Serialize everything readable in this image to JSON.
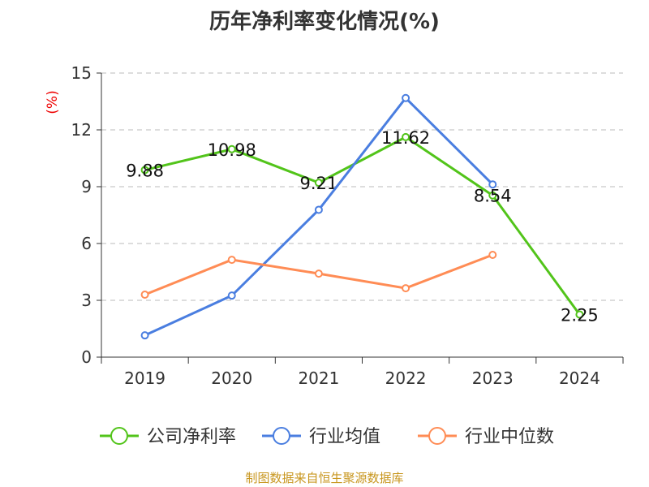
{
  "chart_data": {
    "type": "line",
    "title": "历年净利率变化情况(%)",
    "ylabel": "(%)",
    "xlabel": "",
    "ylim": [
      0,
      15
    ],
    "yticks": [
      0,
      3,
      6,
      9,
      12,
      15
    ],
    "categories": [
      "2019",
      "2020",
      "2021",
      "2022",
      "2023",
      "2024"
    ],
    "grid": true,
    "legend_position": "bottom",
    "series": [
      {
        "name": "公司净利率",
        "color": "#52c41a",
        "values": [
          9.88,
          10.98,
          9.21,
          11.62,
          8.54,
          2.25
        ],
        "labels": [
          "9.88",
          "10.98",
          "9.21",
          "11.62",
          "8.54",
          "2.25"
        ]
      },
      {
        "name": "行业均值",
        "color": "#4a7ee0",
        "values": [
          1.15,
          3.25,
          7.78,
          13.68,
          9.12,
          null
        ]
      },
      {
        "name": "行业中位数",
        "color": "#ff8c55",
        "values": [
          3.3,
          5.14,
          4.41,
          3.64,
          5.4,
          null
        ]
      }
    ],
    "source": "制图数据来自恒生聚源数据库"
  }
}
